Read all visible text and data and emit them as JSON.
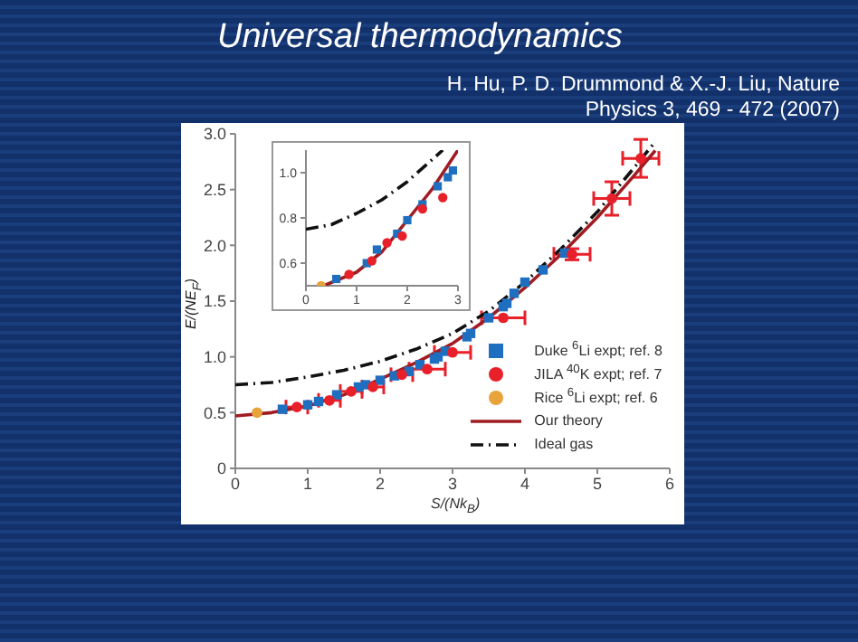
{
  "chart_data": [
    {
      "type": "scatter",
      "title": "Universal thermodynamics",
      "subtitle": "H. Hu, P. D. Drummond & X.-J. Liu, Nature Physics 3, 469 - 472 (2007)",
      "xlabel": "S/(Nk$_{B}$)",
      "ylabel": "E/(NE$_{F}$)",
      "xlim": [
        0,
        6
      ],
      "xticks": [
        0,
        1,
        2,
        3,
        4,
        5,
        6
      ],
      "ylim": [
        0,
        3
      ],
      "yticks": [
        0,
        0.5,
        {
          "value": 1,
          "label": "1.0"
        },
        1.5,
        {
          "value": 2,
          "label": "2.0"
        },
        2.5,
        {
          "value": 3,
          "label": "3.0"
        }
      ],
      "grid": false,
      "legend": "bottom right",
      "series": [
        {
          "name": "Duke $^{6}$Li expt; ref. 8",
          "type": "scatter",
          "marker": "square",
          "color": "#1f6fc0",
          "x": [
            0.65,
            1.0,
            1.15,
            1.4,
            1.7,
            1.8,
            2.0,
            2.2,
            2.4,
            2.55,
            2.75,
            2.8,
            2.9,
            3.2,
            3.25,
            3.5,
            3.7,
            3.75,
            3.85,
            4.0,
            4.25,
            4.55
          ],
          "values": [
            0.53,
            0.57,
            0.6,
            0.66,
            0.73,
            0.75,
            0.79,
            0.83,
            0.87,
            0.93,
            0.98,
            1.0,
            1.05,
            1.18,
            1.21,
            1.35,
            1.45,
            1.48,
            1.57,
            1.67,
            1.78,
            1.93
          ]
        },
        {
          "name": "JILA $^{40}$K expt; ref. 7",
          "type": "scatter",
          "marker": "circle",
          "color": "#e8202a",
          "x": [
            0.85,
            1.3,
            1.6,
            1.9,
            2.3,
            2.65,
            3.0,
            3.7,
            4.65,
            5.2,
            5.6
          ],
          "values": [
            0.55,
            0.61,
            0.69,
            0.73,
            0.84,
            0.89,
            1.04,
            1.35,
            1.92,
            2.42,
            2.78
          ],
          "errors": [
            null,
            null,
            null,
            null,
            null,
            null,
            null,
            null,
            0.05,
            0.15,
            0.17
          ],
          "xerrors": [
            0.15,
            0.15,
            0.15,
            0.15,
            0.15,
            0.25,
            0.25,
            0.3,
            0.25,
            0.25,
            0.25
          ]
        },
        {
          "name": "Rice $^{6}$Li expt; ref. 6",
          "type": "scatter",
          "marker": "circle",
          "color": "#e8a33a",
          "x": [
            0.3
          ],
          "values": [
            0.5
          ]
        },
        {
          "name": "Our theory",
          "type": "line",
          "marker": "none",
          "line_style": "solid",
          "color": "#a01c22",
          "x": [
            0,
            0.5,
            1,
            1.5,
            2,
            2.5,
            3,
            3.5,
            4,
            4.5,
            5,
            5.5,
            5.8
          ],
          "values": [
            0.47,
            0.5,
            0.56,
            0.66,
            0.8,
            0.95,
            1.12,
            1.35,
            1.62,
            1.92,
            2.25,
            2.62,
            2.85
          ]
        },
        {
          "name": "Ideal gas",
          "type": "line",
          "marker": "none",
          "line_style": "dashdot",
          "color": "#111111",
          "x": [
            0,
            0.5,
            1,
            1.5,
            2,
            2.5,
            3,
            3.5,
            4,
            4.5,
            5,
            5.5,
            5.8
          ],
          "values": [
            0.75,
            0.77,
            0.82,
            0.88,
            0.96,
            1.07,
            1.21,
            1.41,
            1.67,
            1.97,
            2.3,
            2.69,
            2.93
          ]
        }
      ]
    },
    {
      "type": "scatter",
      "xlim": [
        0,
        3
      ],
      "xticks": [
        0,
        1,
        2,
        3
      ],
      "ylim": [
        0.5,
        1.1
      ],
      "yticks": [
        0.6,
        0.8,
        {
          "value": 1,
          "label": "1.0"
        }
      ],
      "grid": false,
      "legend": false,
      "series": [
        {
          "type": "scatter",
          "marker": "square",
          "color": "#1f6fc0",
          "x": [
            0.6,
            1.2,
            1.4,
            1.8,
            2.0,
            2.3,
            2.6,
            2.8,
            2.9
          ],
          "values": [
            0.53,
            0.6,
            0.66,
            0.73,
            0.79,
            0.86,
            0.94,
            0.98,
            1.01
          ]
        },
        {
          "type": "scatter",
          "marker": "circle",
          "color": "#e8202a",
          "x": [
            0.85,
            1.3,
            1.6,
            1.9,
            2.3,
            2.7
          ],
          "values": [
            0.55,
            0.61,
            0.69,
            0.72,
            0.84,
            0.89
          ]
        },
        {
          "type": "scatter",
          "marker": "circle",
          "color": "#e8a33a",
          "x": [
            0.3
          ],
          "values": [
            0.5
          ]
        },
        {
          "type": "line",
          "marker": "none",
          "line_style": "solid",
          "color": "#a01c22",
          "x": [
            0.35,
            1,
            1.5,
            2,
            2.5,
            3
          ],
          "values": [
            0.5,
            0.56,
            0.65,
            0.79,
            0.93,
            1.1
          ]
        },
        {
          "type": "line",
          "marker": "none",
          "line_style": "dashdot",
          "color": "#111111",
          "x": [
            0,
            0.5,
            1,
            1.5,
            2,
            2.5,
            2.7
          ],
          "values": [
            0.75,
            0.77,
            0.82,
            0.88,
            0.96,
            1.06,
            1.1
          ]
        }
      ]
    }
  ]
}
